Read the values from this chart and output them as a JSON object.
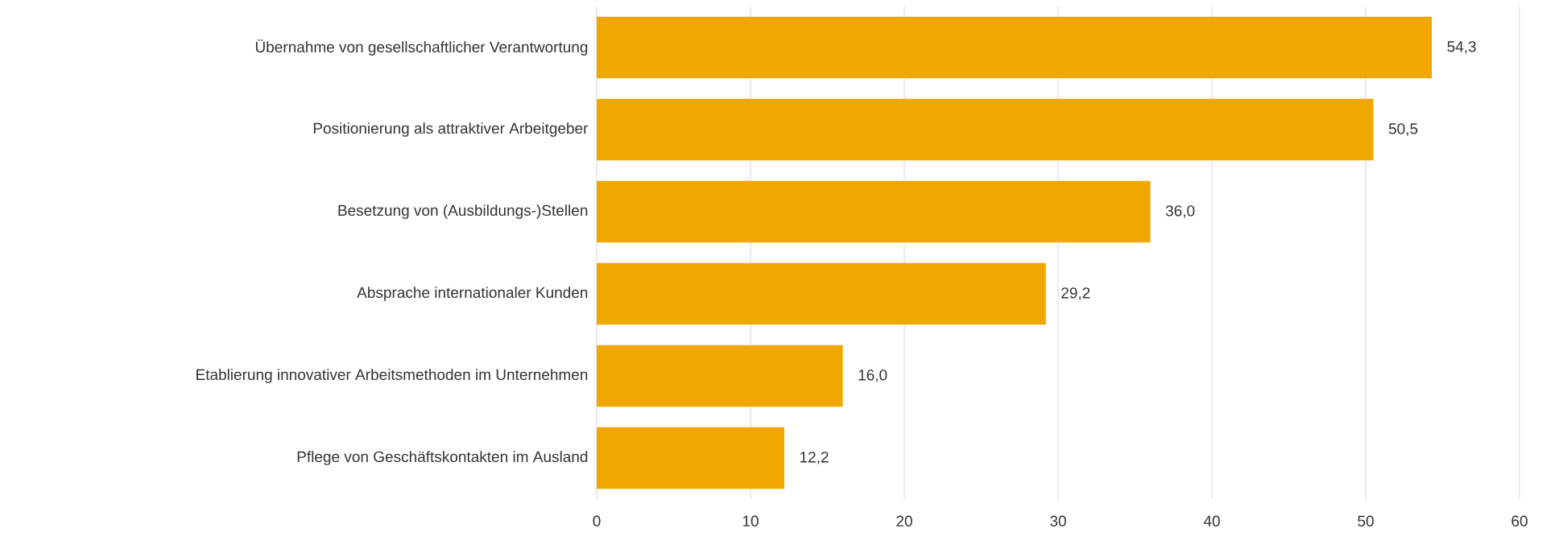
{
  "chart_data": {
    "type": "bar",
    "orientation": "horizontal",
    "categories": [
      "Übernahme von gesellschaftlicher Verantwortung",
      "Positionierung als attraktiver Arbeitgeber",
      "Besetzung von (Ausbildungs-)Stellen",
      "Absprache internationaler Kunden",
      "Etablierung innovativer Arbeitsmethoden im Unternehmen",
      "Pflege von Geschäftskontakten im Ausland"
    ],
    "values": [
      54.3,
      50.5,
      36.0,
      29.2,
      16.0,
      12.2
    ],
    "value_labels": [
      "54,3",
      "50,5",
      "36,0",
      "29,2",
      "16,0",
      "12,2"
    ],
    "color": "#f0a800",
    "xlim": [
      0,
      60
    ],
    "xticks": [
      0,
      10,
      20,
      30,
      40,
      50,
      60
    ],
    "grid": "x"
  }
}
